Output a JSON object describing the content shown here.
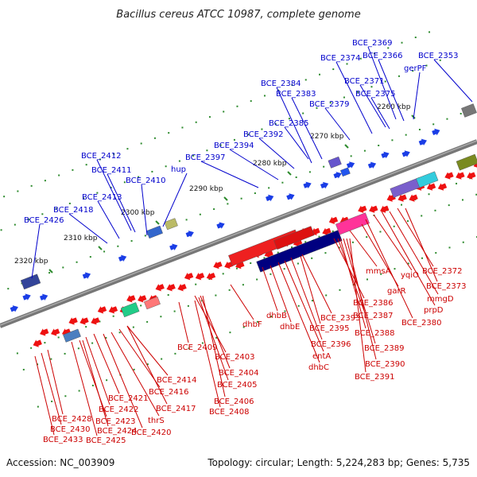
{
  "title": "Bacillus cereus ATCC 10987, complete genome",
  "footer": {
    "accession": "Accession: NC_003909",
    "summary": "Topology: circular; Length: 5,224,283 bp; Genes: 5,735"
  },
  "ruler": {
    "kbp_labels": [
      "2320 kbp",
      "2310 kbp",
      "2300 kbp",
      "2290 kbp",
      "2280 kbp",
      "2270 kbp",
      "2260 kbp"
    ]
  },
  "colors": {
    "forward_labels": "#0000cc",
    "reverse_labels": "#cc0000",
    "forward_features": "#1a3de6",
    "reverse_features": "#ee1111",
    "backbone": "#777777",
    "tick": "#2e8b2e"
  },
  "top_labels": [
    "BCE_2369",
    "BCE_2353",
    "BCE_2374",
    "BCE_2366",
    "gerPF",
    "BCE_2371",
    "BCE_2384",
    "BCE_2383",
    "BCE_2375",
    "BCE_2379",
    "BCE_2385",
    "BCE_2392",
    "BCE_2394",
    "BCE_2397",
    "BCE_2412",
    "BCE_2411",
    "hup",
    "BCE_2410",
    "BCE_2413",
    "BCE_2418",
    "BCE_2426"
  ],
  "bottom_labels": [
    "mmsA",
    "yqiO",
    "BCE_2372",
    "garR",
    "BCE_2373",
    "mmgD",
    "prpD",
    "BCE_2380",
    "BCE_2386",
    "BCE_2387",
    "BCE_2388",
    "BCE_2389",
    "BCE_2390",
    "BCE_2391",
    "BCE_2393",
    "BCE_2395",
    "BCE_2396",
    "entA",
    "dhbC",
    "dhbB",
    "dhbE",
    "dhbF",
    "BCE_2409",
    "BCE_2403",
    "BCE_2404",
    "BCE_2405",
    "BCE_2406",
    "BCE_2408",
    "BCE_2414",
    "BCE_2416",
    "BCE_2417",
    "BCE_2421",
    "BCE_2422",
    "BCE_2423",
    "BCE_2424",
    "BCE_2425",
    "thrS",
    "BCE_2420",
    "BCE_2428",
    "BCE_2430",
    "BCE_2433"
  ]
}
